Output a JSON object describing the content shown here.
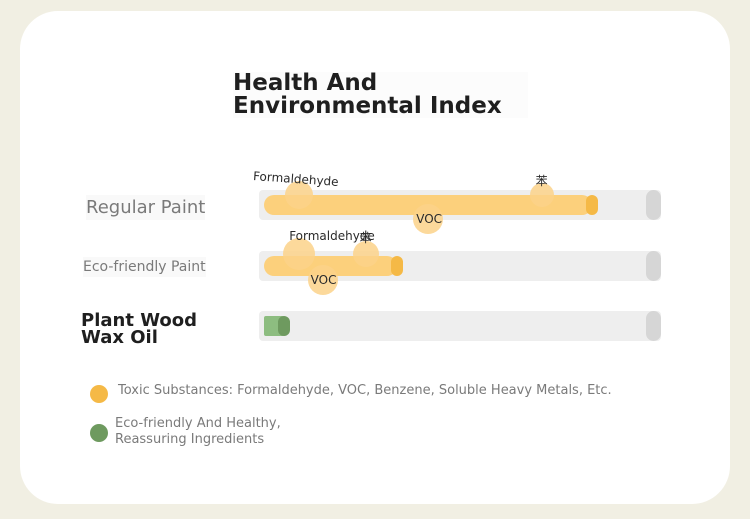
{
  "chart_data": {
    "type": "bar",
    "title": "Health And Environmental Index",
    "orientation": "horizontal",
    "categories": [
      "Regular Paint",
      "Eco-friendly Paint",
      "Plant Wood Wax Oil"
    ],
    "values": [
      0.84,
      0.34,
      0.05
    ],
    "xlim": [
      0,
      1
    ],
    "grid": false,
    "series_colors": [
      "#fcd07c",
      "#fcd07c",
      "#8dbd80"
    ],
    "annotations": [
      {
        "category": "Regular Paint",
        "label": "Formaldehyde",
        "value": 0.09
      },
      {
        "category": "Regular Paint",
        "label": "VOC",
        "value": 0.42
      },
      {
        "category": "Regular Paint",
        "label": "苯",
        "value": 0.71
      },
      {
        "category": "Eco-friendly Paint",
        "label": "Formaldehyde",
        "value": 0.09
      },
      {
        "category": "Eco-friendly Paint",
        "label": "VOC",
        "value": 0.15
      },
      {
        "category": "Eco-friendly Paint",
        "label": "苯",
        "value": 0.26
      }
    ],
    "legend": [
      {
        "label": "Toxic Substances: Formaldehyde, VOC, Benzene, Soluble Heavy Metals, Etc.",
        "color": "#f5b946"
      },
      {
        "label": "Eco-friendly And Healthy, Reassuring Ingredients",
        "color": "#6e9a5f"
      }
    ],
    "legend_position": "bottom-left"
  }
}
